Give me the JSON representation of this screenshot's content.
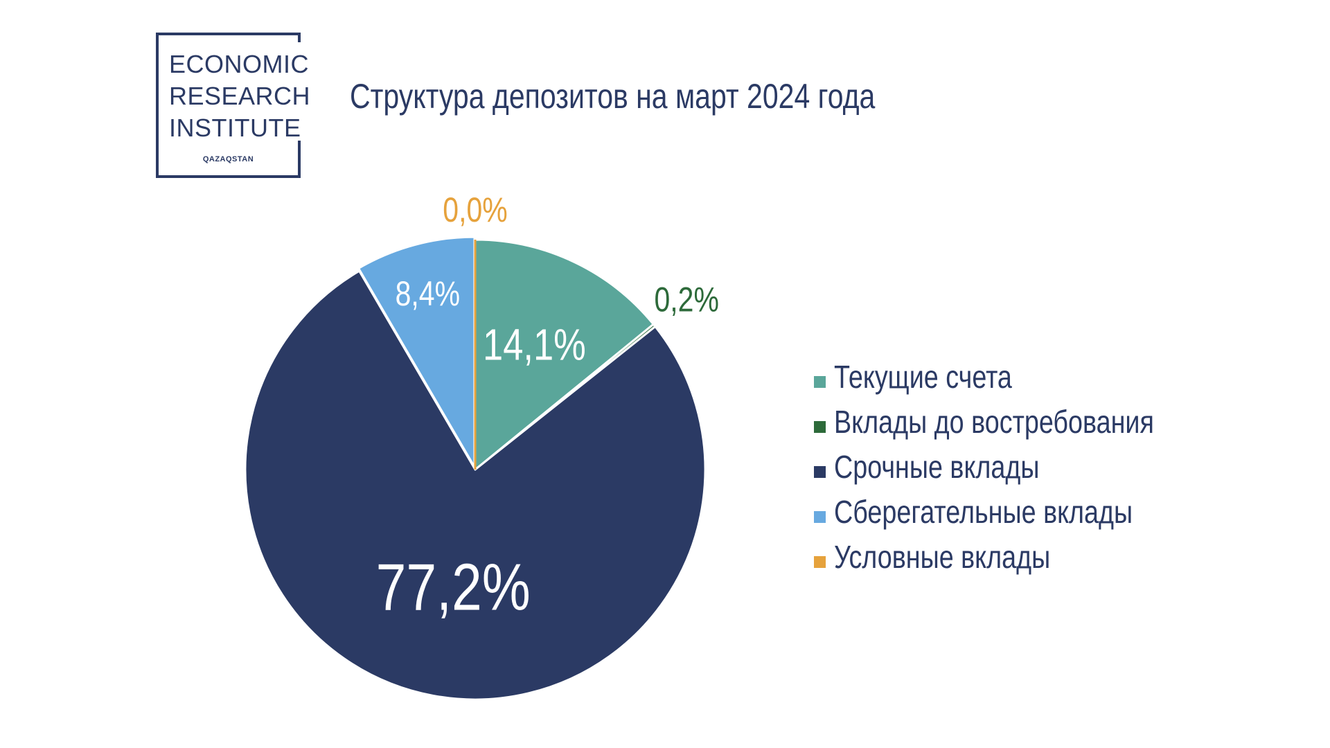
{
  "logo": {
    "line1": "ECONOMIC",
    "line2": "RESEARCH",
    "line3": "INSTITUTE",
    "sub": "QAZAQSTAN",
    "color": "#2b3a64"
  },
  "chart_data": {
    "type": "pie",
    "title": "Структура депозитов на март 2024 года",
    "start_angle_deg": 0,
    "direction": "clockwise",
    "legend_position": "right",
    "slices": [
      {
        "name": "Текущие счета",
        "value": 14.1,
        "label": "14,1%",
        "color": "#5aa69a",
        "label_color": "#ffffff",
        "label_placement": "inside"
      },
      {
        "name": "Вклады до востребования",
        "value": 0.2,
        "label": "0,2%",
        "color": "#2d6a3a",
        "label_color": "#2d6a3a",
        "label_placement": "outside"
      },
      {
        "name": "Срочные вклады",
        "value": 77.2,
        "label": "77,2%",
        "color": "#2b3a64",
        "label_color": "#ffffff",
        "label_placement": "inside"
      },
      {
        "name": "Сберегательные вклады",
        "value": 8.4,
        "label": "8,4%",
        "color": "#67a9e0",
        "label_color": "#ffffff",
        "label_placement": "inside"
      },
      {
        "name": "Условные вклады",
        "value": 0.0,
        "label": "0,0%",
        "color": "#e6a23c",
        "label_color": "#e6a23c",
        "label_placement": "outside"
      }
    ]
  }
}
